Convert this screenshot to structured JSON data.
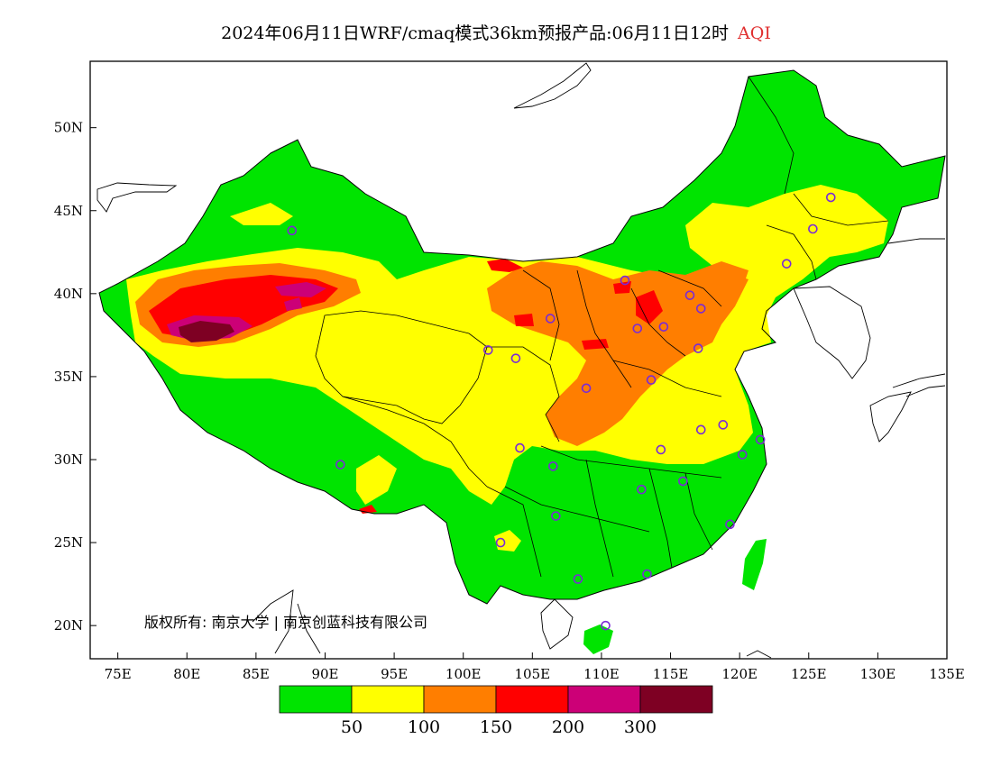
{
  "title": {
    "text": "2024年06月11日WRF/cmaq模式36km预报产品:06月11日12时",
    "variable": "AQI"
  },
  "map": {
    "lon_range": [
      73,
      135
    ],
    "lat_range": [
      18,
      54
    ],
    "lon_ticks": [
      "75E",
      "80E",
      "85E",
      "90E",
      "95E",
      "100E",
      "105E",
      "110E",
      "115E",
      "120E",
      "125E",
      "130E",
      "135E"
    ],
    "lat_ticks": [
      "20N",
      "25N",
      "30N",
      "35N",
      "40N",
      "45N",
      "50N"
    ],
    "lon_tick_values": [
      75,
      80,
      85,
      90,
      95,
      100,
      105,
      110,
      115,
      120,
      125,
      130,
      135
    ],
    "lat_tick_values": [
      20,
      25,
      30,
      35,
      40,
      45,
      50
    ]
  },
  "legend": {
    "colors": [
      "#00e400",
      "#ffff00",
      "#ff7e00",
      "#ff0000",
      "#cc0077",
      "#7e0023"
    ],
    "labels": [
      "50",
      "100",
      "150",
      "200",
      "300"
    ]
  },
  "copyright": "版权所有: 南京大学 | 南京创蓝科技有限公司",
  "stations": [
    {
      "lon": 87.6,
      "lat": 43.8
    },
    {
      "lon": 91.1,
      "lat": 29.7
    },
    {
      "lon": 101.8,
      "lat": 36.6
    },
    {
      "lon": 103.8,
      "lat": 36.1
    },
    {
      "lon": 106.3,
      "lat": 38.5
    },
    {
      "lon": 111.7,
      "lat": 40.8
    },
    {
      "lon": 112.6,
      "lat": 37.9
    },
    {
      "lon": 114.5,
      "lat": 38.0
    },
    {
      "lon": 116.4,
      "lat": 39.9
    },
    {
      "lon": 117.2,
      "lat": 39.1
    },
    {
      "lon": 117.0,
      "lat": 36.7
    },
    {
      "lon": 113.6,
      "lat": 34.8
    },
    {
      "lon": 108.9,
      "lat": 34.3
    },
    {
      "lon": 104.1,
      "lat": 30.7
    },
    {
      "lon": 106.5,
      "lat": 29.6
    },
    {
      "lon": 106.7,
      "lat": 26.6
    },
    {
      "lon": 102.7,
      "lat": 25.0
    },
    {
      "lon": 108.3,
      "lat": 22.8
    },
    {
      "lon": 113.3,
      "lat": 23.1
    },
    {
      "lon": 110.3,
      "lat": 20.0
    },
    {
      "lon": 112.9,
      "lat": 28.2
    },
    {
      "lon": 114.3,
      "lat": 30.6
    },
    {
      "lon": 115.9,
      "lat": 28.7
    },
    {
      "lon": 119.3,
      "lat": 26.1
    },
    {
      "lon": 120.2,
      "lat": 30.3
    },
    {
      "lon": 118.8,
      "lat": 32.1
    },
    {
      "lon": 117.2,
      "lat": 31.8
    },
    {
      "lon": 121.5,
      "lat": 31.2
    },
    {
      "lon": 123.4,
      "lat": 41.8
    },
    {
      "lon": 125.3,
      "lat": 43.9
    },
    {
      "lon": 126.6,
      "lat": 45.8
    }
  ]
}
